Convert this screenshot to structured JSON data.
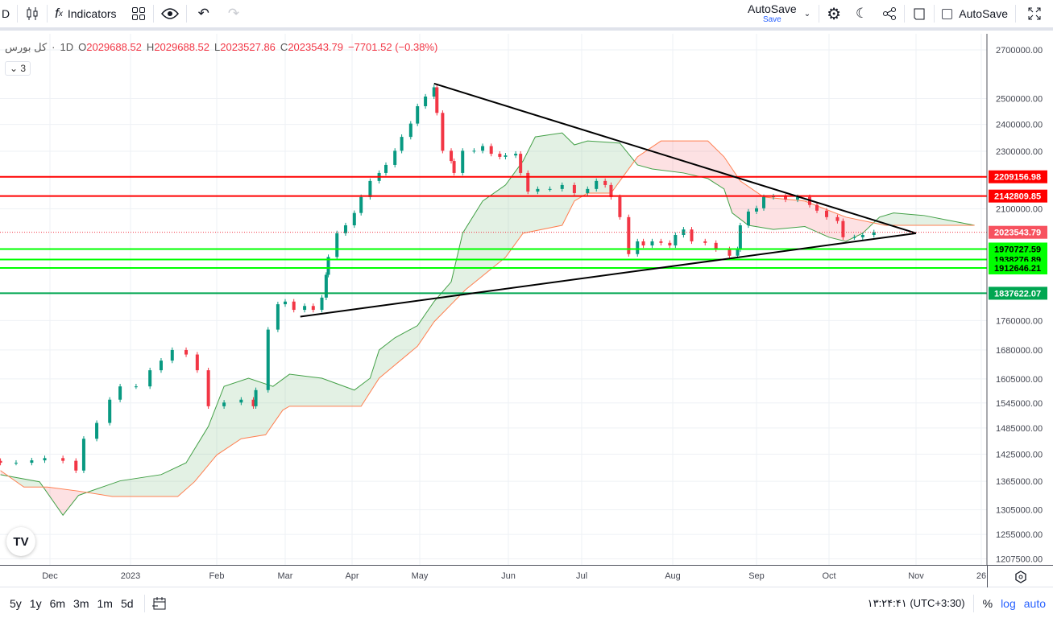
{
  "toolbar": {
    "interval": "D",
    "indicators_label": "Indicators",
    "autosave_title": "AutoSave",
    "autosave_sub": "Save",
    "autosave_checkbox": "AutoSave"
  },
  "legend": {
    "symbol": "كل بورس",
    "interval": "1D",
    "o_label": "O",
    "o": "2029688.52",
    "h_label": "H",
    "h": "2029688.52",
    "l_label": "L",
    "l": "2023527.86",
    "c_label": "C",
    "c": "2023543.79",
    "change": "−7701.52 (−0.38%)",
    "collapsed_count": "3"
  },
  "bottombar": {
    "timeframes": [
      "5y",
      "1y",
      "6m",
      "3m",
      "1m",
      "5d"
    ],
    "clock": "۱۳:۲۴:۴۱ (UTC+3:30)",
    "percent": "%",
    "log": "log",
    "auto": "auto"
  },
  "colors": {
    "up": "#089981",
    "down": "#f23645",
    "span_a": "#43a047",
    "span_b": "#ff7f50",
    "cloud_up": "rgba(67,160,71,0.15)",
    "cloud_down": "rgba(242,54,69,0.15)",
    "resistance": "#ff0000",
    "support": "#00ff00",
    "support_strong": "#00a651",
    "trendline": "#000000",
    "accent": "#2962ff"
  },
  "chart_data": {
    "type": "candlestick",
    "scale": "log",
    "ylim": [
      1207500,
      2700000
    ],
    "grid": true,
    "y_ticks": [
      "2700000.00",
      "2500000.00",
      "2400000.00",
      "2300000.00",
      "2100000.00",
      "1760000.00",
      "1680000.00",
      "1605000.00",
      "1545000.00",
      "1485000.00",
      "1425000.00",
      "1365000.00",
      "1305000.00",
      "1255000.00",
      "1207500.00"
    ],
    "x_ticks": [
      "Dec",
      "2023",
      "Feb",
      "Mar",
      "Apr",
      "May",
      "Jun",
      "Jul",
      "Aug",
      "Sep",
      "Oct",
      "Nov",
      "26"
    ],
    "last_price": "2023543.79",
    "closes": [
      [
        "2022-11-12",
        1405600
      ],
      [
        "2022-11-18",
        1405600
      ],
      [
        "2022-11-24",
        1411000
      ],
      [
        "2022-11-29",
        1416000
      ],
      [
        "2022-12-06",
        1410000
      ],
      [
        "2022-12-11",
        1388400
      ],
      [
        "2022-12-14",
        1460000
      ],
      [
        "2022-12-19",
        1497000
      ],
      [
        "2022-12-24",
        1553000
      ],
      [
        "2022-12-28",
        1586000
      ],
      [
        "2023-01-03",
        1586000
      ],
      [
        "2023-01-08",
        1627000
      ],
      [
        "2023-01-12",
        1652000
      ],
      [
        "2023-01-16",
        1680000
      ],
      [
        "2023-01-21",
        1668000
      ],
      [
        "2023-01-25",
        1627000
      ],
      [
        "2023-01-29",
        1537000
      ],
      [
        "2023-02-04",
        1546000
      ],
      [
        "2023-02-11",
        1553000
      ],
      [
        "2023-02-16",
        1537000
      ],
      [
        "2023-02-17",
        1576800
      ],
      [
        "2023-02-22",
        1735000
      ],
      [
        "2023-02-26",
        1806000
      ],
      [
        "2023-03-01",
        1813600
      ],
      [
        "2023-03-05",
        1790000
      ],
      [
        "2023-03-10",
        1801000
      ],
      [
        "2023-03-14",
        1790000
      ],
      [
        "2023-03-18",
        1825000
      ],
      [
        "2023-03-20",
        1892000
      ],
      [
        "2023-03-21",
        1946000
      ],
      [
        "2023-03-25",
        2020600
      ],
      [
        "2023-03-29",
        2046000
      ],
      [
        "2023-04-02",
        2086300
      ],
      [
        "2023-04-05",
        2139500
      ],
      [
        "2023-04-09",
        2194700
      ],
      [
        "2023-04-13",
        2222600
      ],
      [
        "2023-04-16",
        2251000
      ],
      [
        "2023-04-20",
        2302000
      ],
      [
        "2023-04-23",
        2353000
      ],
      [
        "2023-04-27",
        2403000
      ],
      [
        "2023-04-30",
        2470000
      ],
      [
        "2023-05-03",
        2508000
      ],
      [
        "2023-05-06",
        2545000
      ],
      [
        "2023-05-07",
        2444000
      ],
      [
        "2023-05-09",
        2302000
      ],
      [
        "2023-05-12",
        2265000
      ],
      [
        "2023-05-13",
        2222600
      ],
      [
        "2023-05-16",
        2302000
      ],
      [
        "2023-05-20",
        2302000
      ],
      [
        "2023-05-23",
        2319000
      ],
      [
        "2023-05-26",
        2291000
      ],
      [
        "2023-05-29",
        2280000
      ],
      [
        "2023-05-31",
        2285000
      ],
      [
        "2023-06-04",
        2291000
      ],
      [
        "2023-06-06",
        2222600
      ],
      [
        "2023-06-09",
        2158000
      ],
      [
        "2023-06-13",
        2167000
      ],
      [
        "2023-06-18",
        2167000
      ],
      [
        "2023-06-23",
        2180600
      ],
      [
        "2023-06-28",
        2153000
      ],
      [
        "2023-07-03",
        2167000
      ],
      [
        "2023-07-06",
        2194700
      ],
      [
        "2023-07-09",
        2180600
      ],
      [
        "2023-07-11",
        2139500
      ],
      [
        "2023-07-14",
        2072700
      ],
      [
        "2023-07-17",
        1955000
      ],
      [
        "2023-07-20",
        1994800
      ],
      [
        "2023-07-22",
        1982000
      ],
      [
        "2023-07-25",
        1994800
      ],
      [
        "2023-07-28",
        1990000
      ],
      [
        "2023-07-31",
        1982000
      ],
      [
        "2023-08-02",
        2015000
      ],
      [
        "2023-08-05",
        2032600
      ],
      [
        "2023-08-08",
        1994800
      ],
      [
        "2023-08-13",
        1990000
      ],
      [
        "2023-08-17",
        1970000
      ],
      [
        "2023-08-22",
        1950000
      ],
      [
        "2023-08-25",
        1970000
      ],
      [
        "2023-08-26",
        2046000
      ],
      [
        "2023-08-29",
        2091000
      ],
      [
        "2023-09-01",
        2102000
      ],
      [
        "2023-09-04",
        2139500
      ],
      [
        "2023-09-08",
        2142000
      ],
      [
        "2023-09-13",
        2131000
      ],
      [
        "2023-09-18",
        2139500
      ],
      [
        "2023-09-23",
        2113000
      ],
      [
        "2023-09-26",
        2094000
      ],
      [
        "2023-09-30",
        2072700
      ],
      [
        "2023-10-04",
        2060000
      ],
      [
        "2023-10-06",
        2007800
      ],
      [
        "2023-10-10",
        2007800
      ],
      [
        "2023-10-13",
        2015000
      ],
      [
        "2023-10-17",
        2023543.79
      ]
    ],
    "ichimoku_span_a": [
      [
        "2022-11-12",
        1379500
      ],
      [
        "2022-11-27",
        1364000
      ],
      [
        "2022-12-06",
        1293800
      ],
      [
        "2022-12-12",
        1335000
      ],
      [
        "2022-12-19",
        1348600
      ],
      [
        "2022-12-28",
        1366000
      ],
      [
        "2023-01-12",
        1379500
      ],
      [
        "2023-01-21",
        1405600
      ],
      [
        "2023-01-29",
        1488800
      ],
      [
        "2023-02-04",
        1586000
      ],
      [
        "2023-02-14",
        1606700
      ],
      [
        "2023-02-24",
        1586000
      ],
      [
        "2023-03-03",
        1616800
      ],
      [
        "2023-03-18",
        1606700
      ],
      [
        "2023-04-02",
        1576800
      ],
      [
        "2023-04-09",
        1606700
      ],
      [
        "2023-04-13",
        1680000
      ],
      [
        "2023-04-20",
        1712700
      ],
      [
        "2023-04-30",
        1746000
      ],
      [
        "2023-05-06",
        1813600
      ],
      [
        "2023-05-12",
        1871000
      ],
      [
        "2023-05-16",
        2020600
      ],
      [
        "2023-05-23",
        2126000
      ],
      [
        "2023-05-31",
        2180600
      ],
      [
        "2023-06-07",
        2265000
      ],
      [
        "2023-06-12",
        2353000
      ],
      [
        "2023-06-23",
        2368000
      ],
      [
        "2023-06-28",
        2323600
      ],
      [
        "2023-07-03",
        2338000
      ],
      [
        "2023-07-14",
        2330000
      ],
      [
        "2023-07-20",
        2251000
      ],
      [
        "2023-07-25",
        2236700
      ],
      [
        "2023-08-05",
        2222600
      ],
      [
        "2023-08-14",
        2203000
      ],
      [
        "2023-08-20",
        2167000
      ],
      [
        "2023-08-23",
        2086300
      ],
      [
        "2023-08-29",
        2046000
      ],
      [
        "2023-09-08",
        2032600
      ],
      [
        "2023-09-21",
        2042000
      ],
      [
        "2023-10-01",
        2007800
      ],
      [
        "2023-10-07",
        1994800
      ],
      [
        "2023-10-13",
        2020600
      ],
      [
        "2023-10-19",
        2072700
      ],
      [
        "2023-10-24",
        2086300
      ],
      [
        "2023-11-04",
        2078000
      ],
      [
        "2023-11-13",
        2062800
      ],
      [
        "2023-11-23",
        2046000
      ]
    ],
    "ichimoku_span_b": [
      [
        "2022-11-12",
        1388400
      ],
      [
        "2022-11-21",
        1352700
      ],
      [
        "2022-11-30",
        1352700
      ],
      [
        "2022-12-12",
        1344000
      ],
      [
        "2022-12-25",
        1332700
      ],
      [
        "2023-01-18",
        1332700
      ],
      [
        "2023-01-24",
        1364000
      ],
      [
        "2023-02-01",
        1423000
      ],
      [
        "2023-02-11",
        1460000
      ],
      [
        "2023-02-21",
        1469300
      ],
      [
        "2023-02-28",
        1527600
      ],
      [
        "2023-03-03",
        1537000
      ],
      [
        "2023-04-05",
        1537000
      ],
      [
        "2023-04-13",
        1606700
      ],
      [
        "2023-04-30",
        1690000
      ],
      [
        "2023-05-06",
        1756400
      ],
      [
        "2023-05-17",
        1847700
      ],
      [
        "2023-05-31",
        1945000
      ],
      [
        "2023-06-07",
        2020600
      ],
      [
        "2023-06-23",
        2046000
      ],
      [
        "2023-06-28",
        2126000
      ],
      [
        "2023-07-03",
        2153000
      ],
      [
        "2023-07-11",
        2153000
      ],
      [
        "2023-07-20",
        2280000
      ],
      [
        "2023-07-28",
        2338000
      ],
      [
        "2023-08-14",
        2338000
      ],
      [
        "2023-08-20",
        2280000
      ],
      [
        "2023-08-26",
        2194700
      ],
      [
        "2023-09-04",
        2139500
      ],
      [
        "2023-09-21",
        2126000
      ],
      [
        "2023-10-07",
        2072700
      ],
      [
        "2023-10-21",
        2046000
      ],
      [
        "2023-11-23",
        2046000
      ]
    ],
    "horizontal_levels": [
      {
        "price": "2209156.98",
        "kind": "resistance"
      },
      {
        "price": "2142809.85",
        "kind": "resistance"
      },
      {
        "price": "1970727.59",
        "kind": "support"
      },
      {
        "price": "1938276.89",
        "kind": "support"
      },
      {
        "price": "1912646.21",
        "kind": "support"
      },
      {
        "price": "1837622.07",
        "kind": "support_strong"
      }
    ],
    "trendlines": [
      [
        [
          "2023-03-08",
          1771000
        ],
        [
          "2023-11-01",
          2020600
        ]
      ],
      [
        [
          "2023-05-06",
          2560000
        ],
        [
          "2023-11-01",
          2020600
        ]
      ]
    ]
  }
}
